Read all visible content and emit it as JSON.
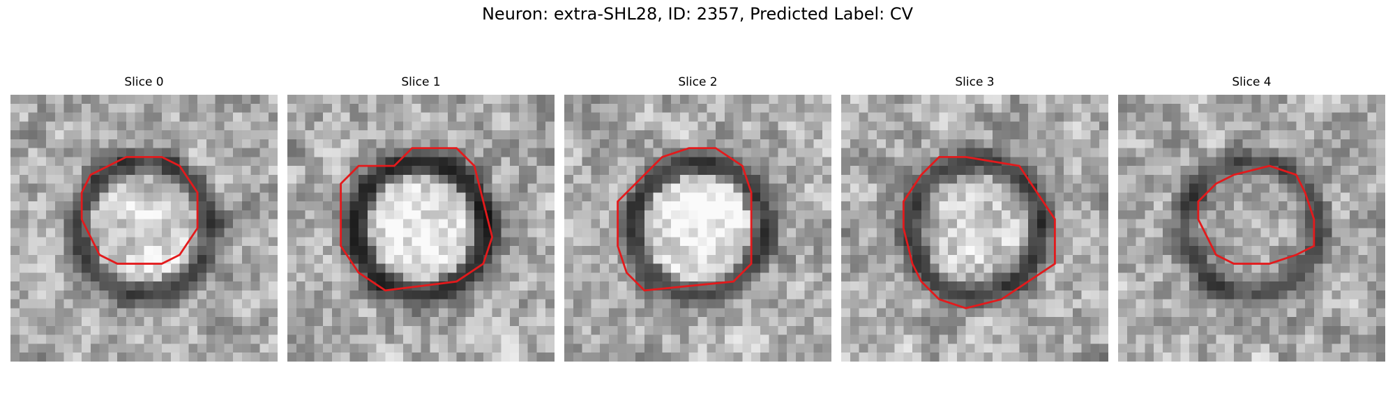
{
  "figure": {
    "title": "Neuron: extra-SHL28, ID: 2357, Predicted Label: CV",
    "outline_color": "#e31a1c",
    "colormap": "gray"
  },
  "panels": [
    {
      "title": "Slice 0",
      "seed": 11,
      "dark_ring": 0.55,
      "center_bright": 0.15
    },
    {
      "title": "Slice 1",
      "seed": 23,
      "dark_ring": 0.65,
      "center_bright": 0.2
    },
    {
      "title": "Slice 2",
      "seed": 37,
      "dark_ring": 0.55,
      "center_bright": 0.25
    },
    {
      "title": "Slice 3",
      "seed": 41,
      "dark_ring": 0.55,
      "center_bright": 0.1
    },
    {
      "title": "Slice 4",
      "seed": 59,
      "dark_ring": 0.45,
      "center_bright": 0.0
    }
  ]
}
